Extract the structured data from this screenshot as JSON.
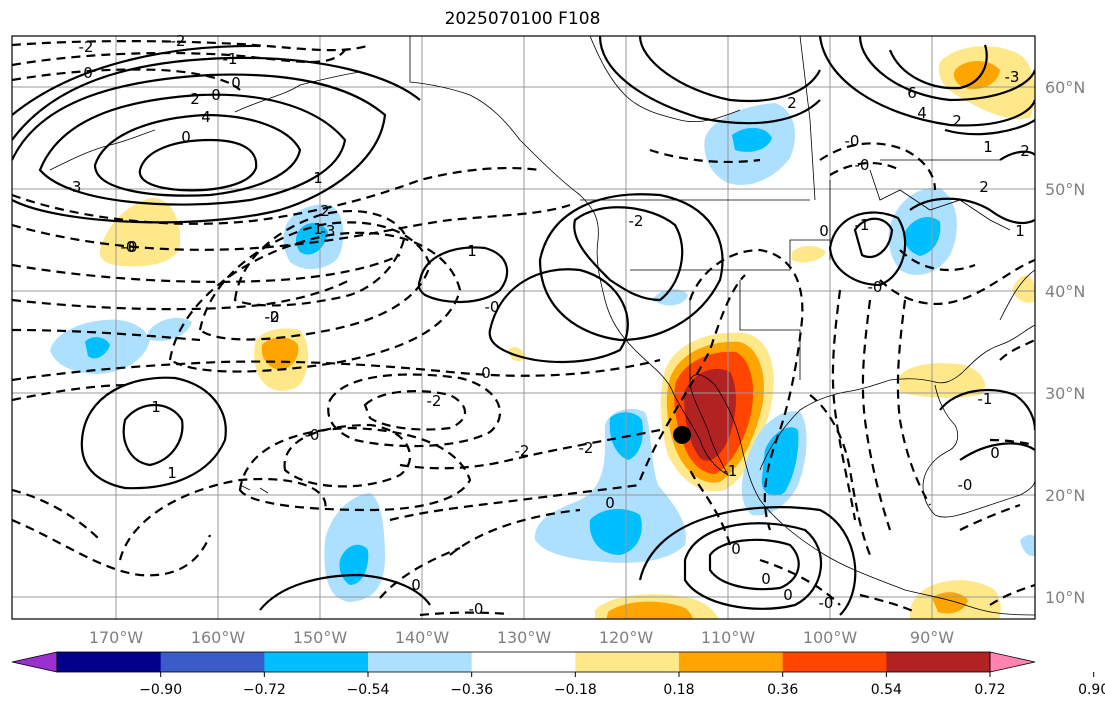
{
  "title": "2025070100 F108",
  "map": {
    "lon_range": [
      -180,
      -80
    ],
    "lat_range": [
      8,
      65
    ],
    "lon_ticks": [
      "170°W",
      "160°W",
      "150°W",
      "140°W",
      "130°W",
      "120°W",
      "110°W",
      "100°W",
      "90°W"
    ],
    "lat_ticks": [
      "60°N",
      "50°N",
      "40°N",
      "30°N",
      "20°N",
      "10°N"
    ],
    "gridlines": true,
    "marker": {
      "lon": -114.5,
      "lat": 26,
      "color": "#000000"
    }
  },
  "colorbar": {
    "tick_labels": [
      "−0.90",
      "−0.72",
      "−0.54",
      "−0.36",
      "−0.18",
      "0.18",
      "0.36",
      "0.54",
      "0.72",
      "0.90"
    ],
    "colors": [
      "#9b30d0",
      "#00008b",
      "#3a5cc8",
      "#00bfff",
      "#ade0ff",
      "#ffffff",
      "#ffe88a",
      "#ffa500",
      "#ff4500",
      "#b22222",
      "#ff85b0"
    ],
    "extend": "both"
  },
  "contour_labels": [
    "-2",
    "-2",
    "0",
    "-1",
    "0",
    "0",
    "2",
    "4",
    "0",
    "-3",
    "-0",
    "1",
    "2",
    "-3",
    "-2",
    "1",
    "-0",
    "0",
    "-2",
    "-0",
    "-2",
    "-2",
    "1",
    "1",
    "0",
    "0",
    "-0",
    "0",
    "-0",
    "0",
    "0",
    "-1",
    "-2",
    "-0",
    "-0",
    "-0",
    "-1",
    "0",
    "1",
    "-0",
    "2",
    "6",
    "4",
    "2",
    "1",
    "0",
    "-1",
    "-0",
    "2",
    "-3",
    "1",
    "2",
    "-0"
  ]
}
